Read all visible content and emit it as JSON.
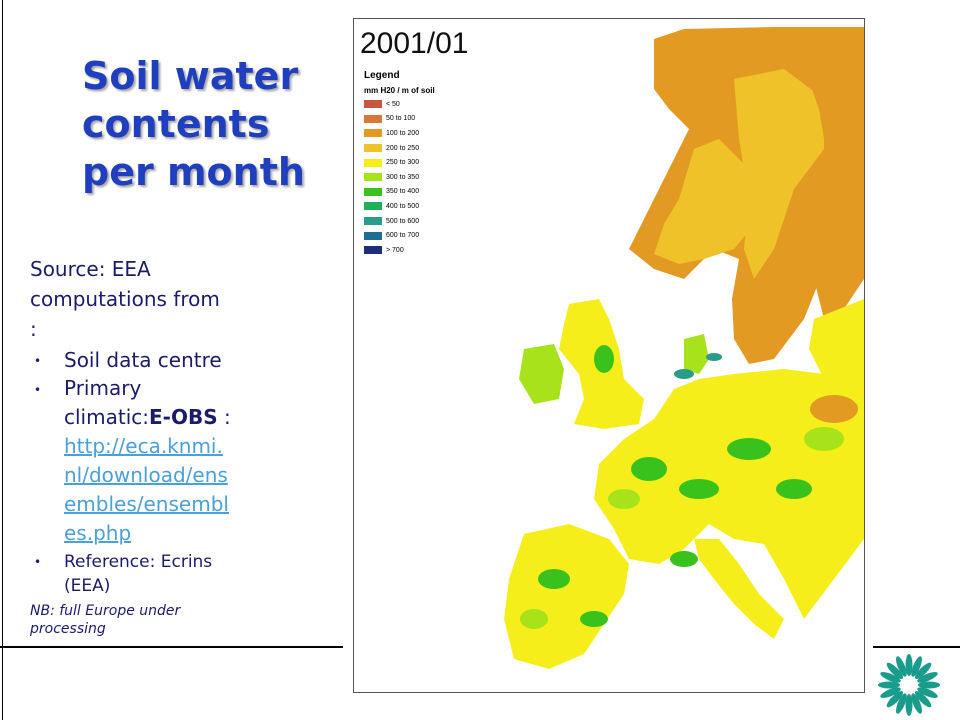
{
  "slide": {
    "title_lines": [
      "Soil water",
      "contents",
      "per month"
    ],
    "source_lines": [
      "Source: EEA",
      "computations from",
      ":"
    ],
    "bullets": {
      "b1": "Soil data centre",
      "b2_prefix": "Primary",
      "b2_text": "climatic:",
      "b2_strong": "E-OBS",
      "b2_after": " :",
      "b2_link_lines": [
        "http://eca.knmi.",
        "nl/download/ens",
        "embles/ensembl",
        "es.php"
      ],
      "b3_lines": [
        "Reference: Ecrins",
        "(EEA)"
      ]
    },
    "note_lines": [
      "NB: full Europe under",
      "processing"
    ]
  },
  "map": {
    "date": "2001/01",
    "legend_title": "Legend",
    "legend_unit": "mm H20 / m of soil",
    "legend": [
      {
        "label": "< 50",
        "color": "#c8553d"
      },
      {
        "label": "50 to 100",
        "color": "#d9773a"
      },
      {
        "label": "100 to 200",
        "color": "#e39a23"
      },
      {
        "label": "200 to 250",
        "color": "#f0c22a"
      },
      {
        "label": "250 to 300",
        "color": "#f5ee1a"
      },
      {
        "label": "300 to 350",
        "color": "#a8e21a"
      },
      {
        "label": "350 to 400",
        "color": "#39c21c"
      },
      {
        "label": "400 to 500",
        "color": "#1fb05a"
      },
      {
        "label": "500 to 600",
        "color": "#2a9c8a"
      },
      {
        "label": "600 to 700",
        "color": "#1f6e8e"
      },
      {
        "label": "> 700",
        "color": "#1d2f7a"
      }
    ],
    "colors": {
      "land_main": "#f5ee1a",
      "land_north": "#e39a23",
      "land_scand": "#f0c22a",
      "green": "#39c21c",
      "light_green": "#a8e21a",
      "teal": "#2a9c8a"
    }
  },
  "logo": {
    "icon": "eea-logo-icon",
    "color": "#1a9c8c"
  }
}
